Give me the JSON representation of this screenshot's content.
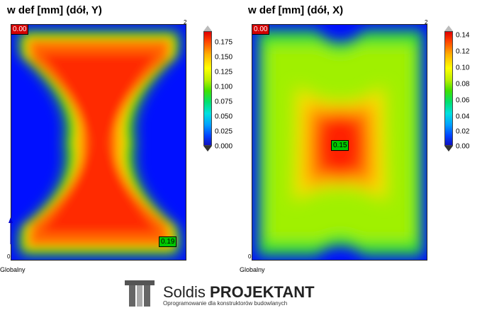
{
  "panels": [
    {
      "title": "w def [mm] (dół, Y)",
      "min_label": "0.00",
      "max_label": "0.19",
      "corner_top": "2",
      "corner_bottom": "0",
      "axis_label": "Globalny",
      "legend_ticks": [
        "0.175",
        "0.150",
        "0.125",
        "0.100",
        "0.075",
        "0.050",
        "0.025",
        "0.000"
      ]
    },
    {
      "title": "w def [mm] (dół, X)",
      "min_label": "0.00",
      "max_label": "0.15",
      "corner_top": "2",
      "corner_bottom": "0",
      "axis_label": "Globalny",
      "legend_ticks": [
        "0.14",
        "0.12",
        "0.10",
        "0.08",
        "0.06",
        "0.04",
        "0.02",
        "0.00"
      ]
    }
  ],
  "logo": {
    "brand_regular": "Soldis ",
    "brand_bold": "PROJEKTANT",
    "tagline": "Oprogramowanie dla konstruktorów budowlanych"
  },
  "colors": {
    "min": "#d40000",
    "max": "#00c800",
    "outside": "#0000ff"
  }
}
